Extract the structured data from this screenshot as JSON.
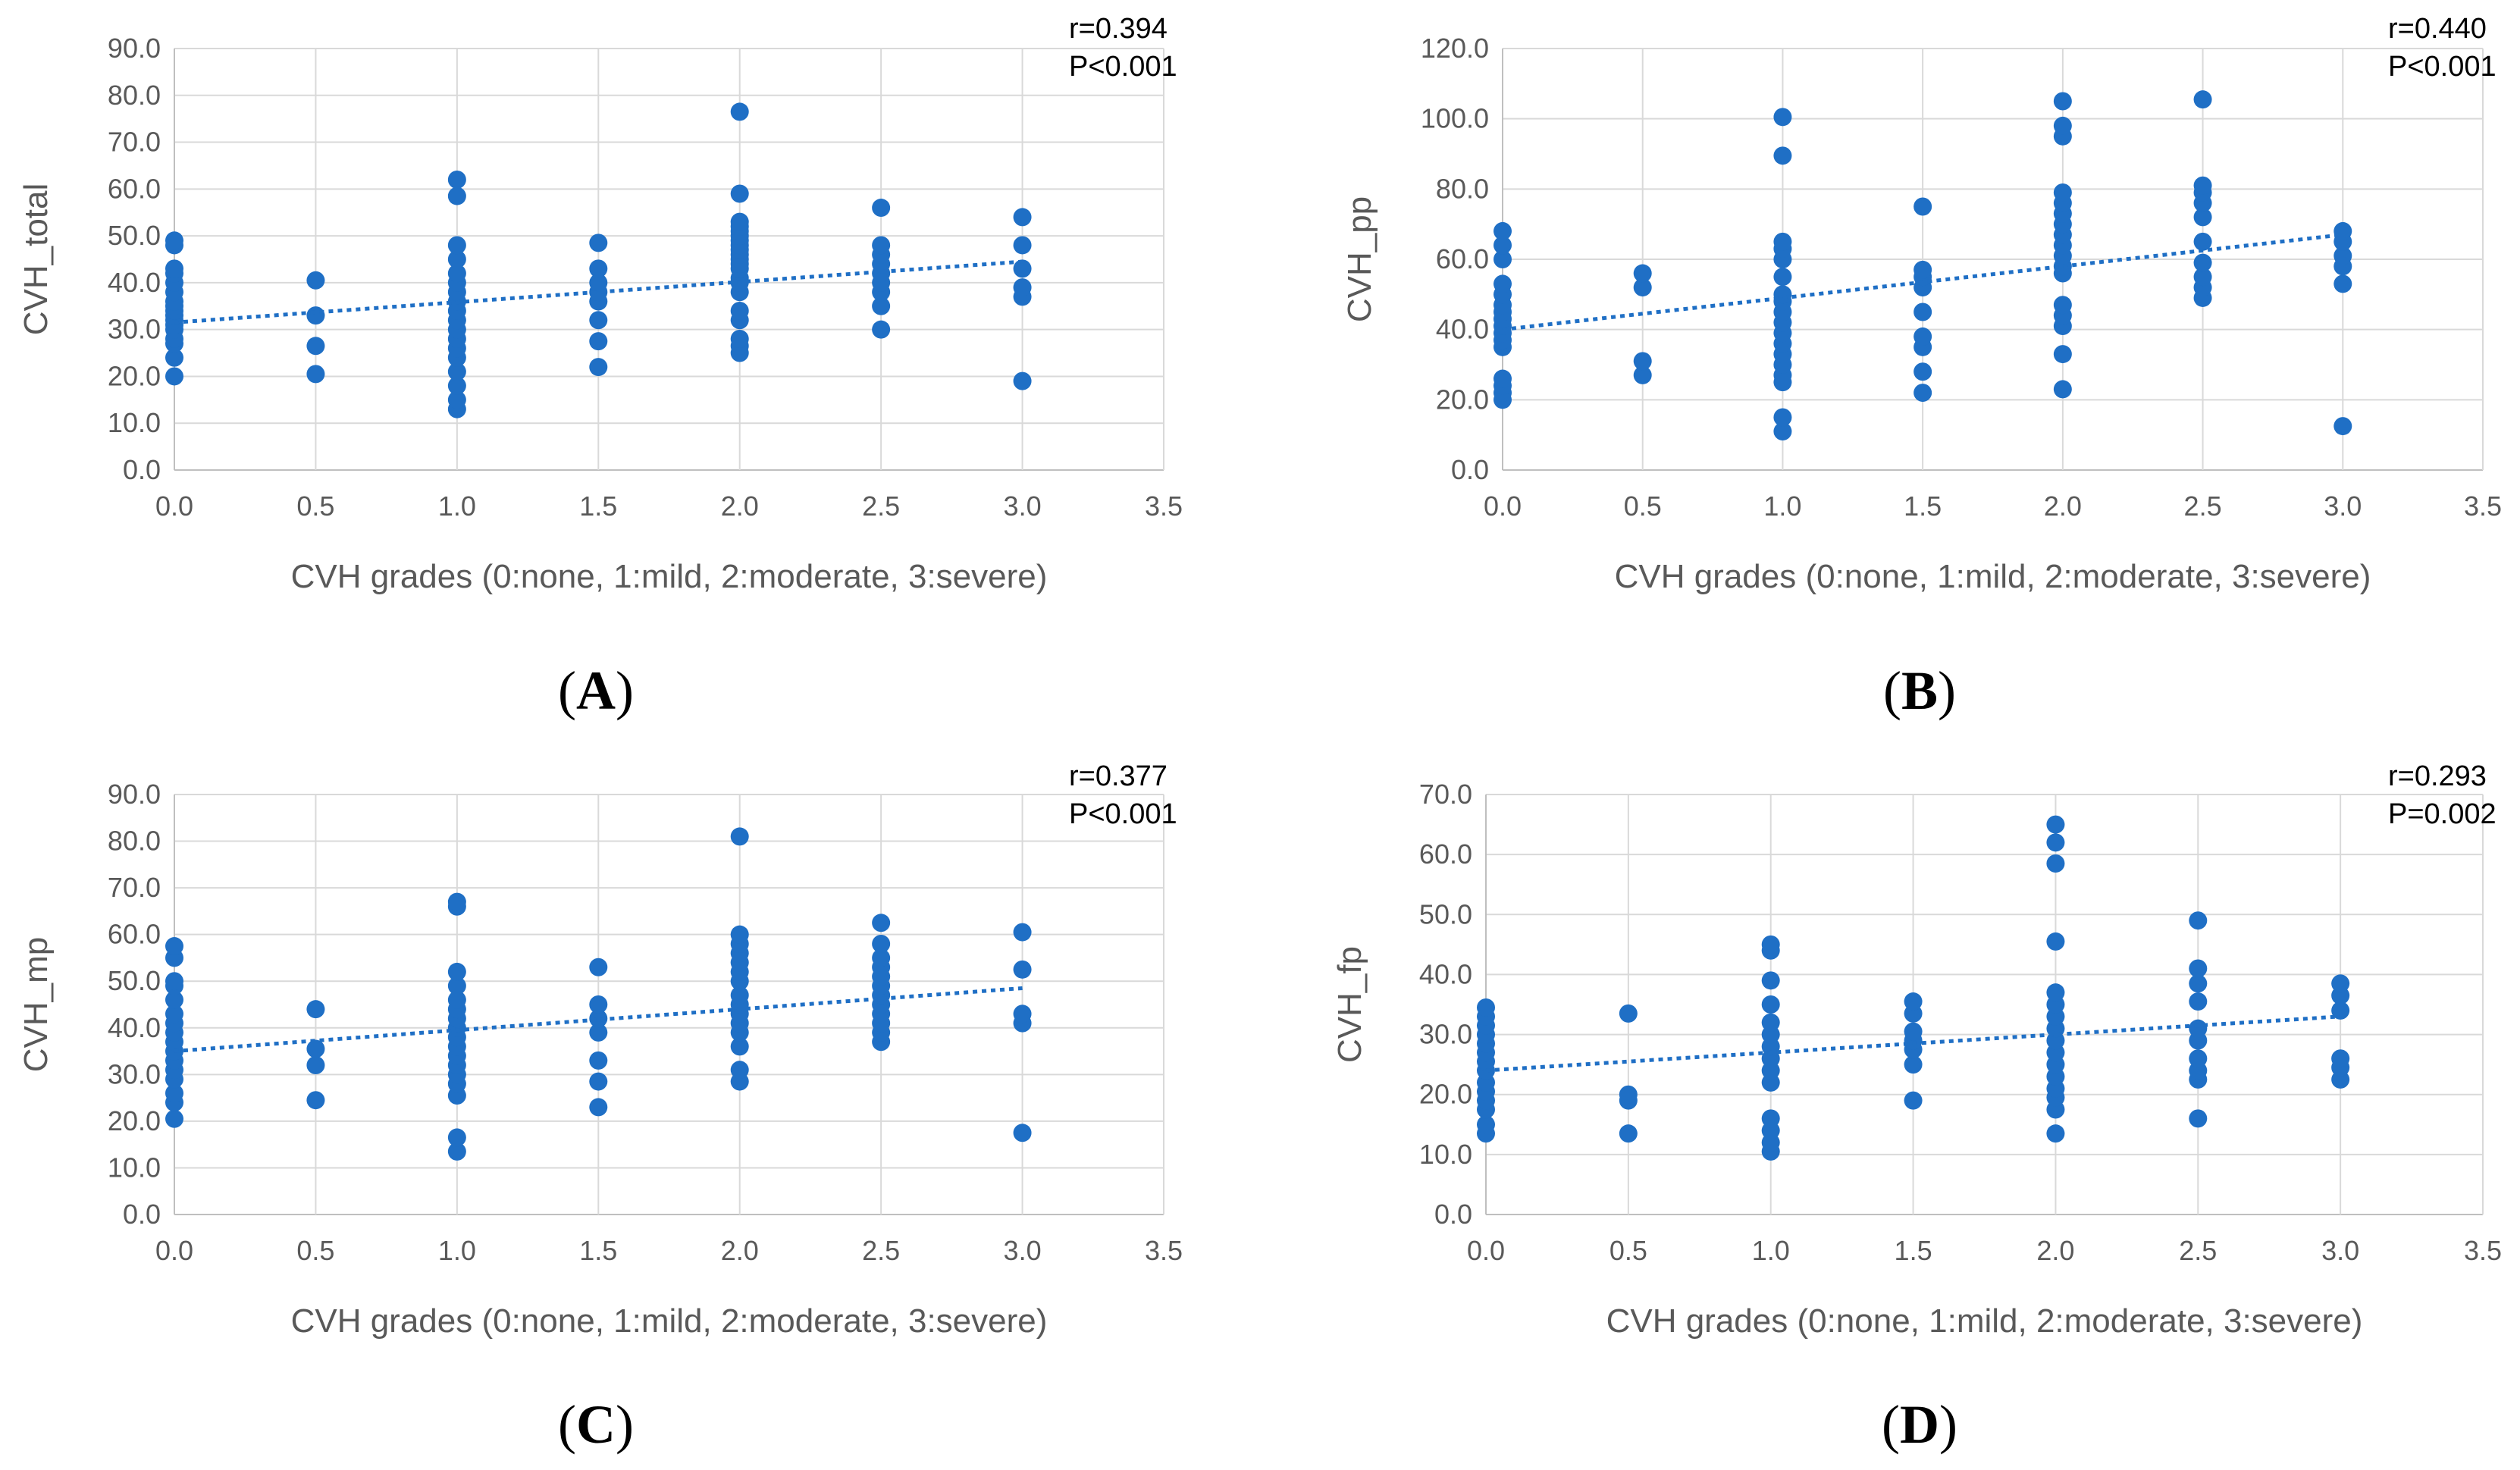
{
  "colors": {
    "marker": "#1f6fc5",
    "trend": "#1f6fc5"
  },
  "chart_data": [
    {
      "type": "scatter",
      "panel": "A",
      "ylabel": "CVH_total",
      "xlabel": "CVH grades (0:none, 1:mild, 2:moderate, 3:severe)",
      "xlim": [
        0,
        3.5
      ],
      "ylim": [
        0,
        90
      ],
      "xticks": [
        "0.0",
        "0.5",
        "1.0",
        "1.5",
        "2.0",
        "2.5",
        "3.0",
        "3.5"
      ],
      "yticks": [
        "0.0",
        "10.0",
        "20.0",
        "30.0",
        "40.0",
        "50.0",
        "60.0",
        "70.0",
        "80.0",
        "90.0"
      ],
      "stats": [
        "r=0.394",
        "P<0.001"
      ],
      "trendline": {
        "x": [
          0,
          3
        ],
        "y": [
          31.5,
          44.5
        ]
      },
      "points": {
        "0": [
          20,
          24,
          27,
          28,
          30,
          31,
          32,
          33,
          34,
          35,
          36,
          38,
          40,
          42,
          43,
          48,
          49
        ],
        "0.5": [
          20.5,
          26.5,
          33,
          40.5
        ],
        "1": [
          13,
          15,
          18,
          21,
          24,
          26,
          28,
          30,
          32,
          34,
          36,
          38,
          40,
          42,
          45,
          48,
          58.5,
          62
        ],
        "1.5": [
          22,
          27.5,
          32,
          36,
          38,
          40,
          43,
          48.5
        ],
        "2": [
          25,
          26.5,
          28,
          32,
          34,
          38,
          40,
          41,
          43,
          44,
          45,
          46,
          47,
          48,
          49,
          50,
          51,
          52,
          53,
          59,
          76.5
        ],
        "2.5": [
          30,
          35,
          38,
          40,
          42,
          44,
          46,
          48,
          56
        ],
        "3": [
          19,
          37,
          39,
          43,
          48,
          54
        ]
      }
    },
    {
      "type": "scatter",
      "panel": "B",
      "ylabel": "CVH_pp",
      "xlabel": "CVH grades (0:none, 1:mild, 2:moderate, 3:severe)",
      "xlim": [
        0,
        3.5
      ],
      "ylim": [
        0,
        120
      ],
      "xticks": [
        "0.0",
        "0.5",
        "1.0",
        "1.5",
        "2.0",
        "2.5",
        "3.0",
        "3.5"
      ],
      "yticks": [
        "0.0",
        "20.0",
        "40.0",
        "60.0",
        "80.0",
        "100.0",
        "120.0"
      ],
      "stats": [
        "r=0.440",
        "P<0.001"
      ],
      "trendline": {
        "x": [
          0,
          3
        ],
        "y": [
          40,
          67
        ]
      },
      "points": {
        "0": [
          20,
          22,
          24,
          26,
          35,
          37,
          39,
          41,
          43,
          45,
          47,
          50,
          53,
          60,
          64,
          68
        ],
        "0.5": [
          27,
          31,
          52,
          56
        ],
        "1": [
          11,
          15,
          25,
          27,
          30,
          33,
          36,
          39,
          42,
          45,
          48,
          50,
          55,
          60,
          63,
          65,
          89.5,
          100.5
        ],
        "1.5": [
          22,
          28,
          35,
          38,
          45,
          52,
          55,
          57,
          75
        ],
        "2": [
          23,
          33,
          41,
          44,
          47,
          56,
          58,
          61,
          64,
          67,
          70,
          73,
          76,
          79,
          95,
          98,
          105
        ],
        "2.5": [
          49,
          52,
          55,
          59,
          65,
          72,
          76,
          79,
          81,
          105.5
        ],
        "3": [
          12.5,
          53,
          58,
          61,
          65,
          68
        ]
      }
    },
    {
      "type": "scatter",
      "panel": "C",
      "ylabel": "CVH_mp",
      "xlabel": "CVH grades (0:none, 1:mild, 2:moderate, 3:severe)",
      "xlim": [
        0,
        3.5
      ],
      "ylim": [
        0,
        90
      ],
      "xticks": [
        "0.0",
        "0.5",
        "1.0",
        "1.5",
        "2.0",
        "2.5",
        "3.0",
        "3.5"
      ],
      "yticks": [
        "0.0",
        "10.0",
        "20.0",
        "30.0",
        "40.0",
        "50.0",
        "60.0",
        "70.0",
        "80.0",
        "90.0"
      ],
      "stats": [
        "r=0.377",
        "P<0.001"
      ],
      "trendline": {
        "x": [
          0,
          3
        ],
        "y": [
          35,
          48.5
        ]
      },
      "points": {
        "0": [
          20.5,
          24,
          26,
          29,
          31,
          33,
          35,
          37,
          39,
          41,
          43,
          46,
          49,
          50,
          55,
          57.5
        ],
        "0.5": [
          24.5,
          32,
          35.5,
          44
        ],
        "1": [
          13.5,
          16.5,
          25.5,
          28,
          30,
          32,
          34,
          36,
          38,
          40,
          42,
          44,
          46,
          49,
          52,
          66,
          67
        ],
        "1.5": [
          23,
          28.5,
          33,
          39,
          42,
          45,
          53
        ],
        "2": [
          28.5,
          31,
          36,
          39,
          41,
          43,
          45,
          47,
          50,
          52,
          54,
          56,
          58,
          60,
          81
        ],
        "2.5": [
          37,
          39,
          41,
          43,
          45,
          47,
          49,
          51,
          53,
          55,
          58,
          62.5
        ],
        "3": [
          17.5,
          41,
          43,
          52.5,
          60.5
        ]
      }
    },
    {
      "type": "scatter",
      "panel": "D",
      "ylabel": "CVH_fp",
      "xlabel": "CVH grades (0:none, 1:mild, 2:moderate, 3:severe)",
      "xlim": [
        0,
        3.5
      ],
      "ylim": [
        0,
        70
      ],
      "xticks": [
        "0.0",
        "0.5",
        "1.0",
        "1.5",
        "2.0",
        "2.5",
        "3.0",
        "3.5"
      ],
      "yticks": [
        "0.0",
        "10.0",
        "20.0",
        "30.0",
        "40.0",
        "50.0",
        "60.0",
        "70.0"
      ],
      "stats": [
        "r=0.293",
        "P=0.002"
      ],
      "trendline": {
        "x": [
          0,
          3
        ],
        "y": [
          24,
          33
        ]
      },
      "points": {
        "0": [
          13.5,
          15,
          17.5,
          19,
          20.5,
          22,
          24,
          25.5,
          27,
          28.5,
          30,
          31.5,
          33,
          34.5
        ],
        "0.5": [
          13.5,
          19,
          20,
          33.5
        ],
        "1": [
          10.5,
          12,
          14,
          16,
          22,
          24,
          26,
          28,
          30,
          32,
          35,
          39,
          44,
          45
        ],
        "1.5": [
          19,
          25,
          27.5,
          29,
          30.5,
          33.5,
          35.5
        ],
        "2": [
          13.5,
          17.5,
          19.5,
          21,
          23,
          25,
          27,
          29,
          31,
          33,
          35,
          37,
          45.5,
          58.5,
          62,
          65
        ],
        "2.5": [
          16,
          22.5,
          24,
          26,
          29,
          31,
          35.5,
          38.5,
          41,
          49
        ],
        "3": [
          22.5,
          24.5,
          26,
          34,
          36.5,
          38.5
        ]
      }
    }
  ],
  "panel_labels": [
    "A",
    "B",
    "C",
    "D"
  ]
}
